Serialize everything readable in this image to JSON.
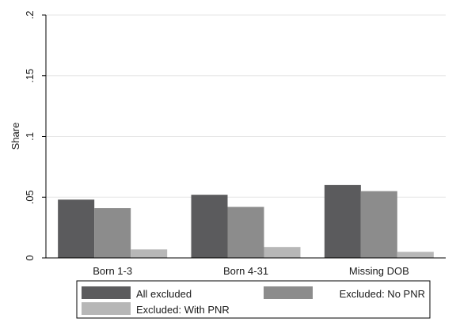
{
  "chart_data": {
    "type": "bar",
    "categories": [
      "Born 1-3",
      "Born 4-31",
      "Missing DOB"
    ],
    "series": [
      {
        "name": "All excluded",
        "values": [
          0.048,
          0.052,
          0.06
        ],
        "color": "#5b5b5d"
      },
      {
        "name": "Excluded: No PNR",
        "values": [
          0.041,
          0.042,
          0.055
        ],
        "color": "#8c8c8c"
      },
      {
        "name": "Excluded: With PNR",
        "values": [
          0.007,
          0.009,
          0.005
        ],
        "color": "#b7b7b7"
      }
    ],
    "title": "",
    "xlabel": "",
    "ylabel": "Share",
    "ylim": [
      0,
      0.2
    ],
    "yticks": [
      0,
      0.05,
      0.1,
      0.15,
      0.2
    ],
    "ytick_labels": [
      "0",
      ".05",
      ".1",
      ".15",
      ".2"
    ],
    "grid": true,
    "legend_position": "bottom",
    "legend_columns": 2
  }
}
